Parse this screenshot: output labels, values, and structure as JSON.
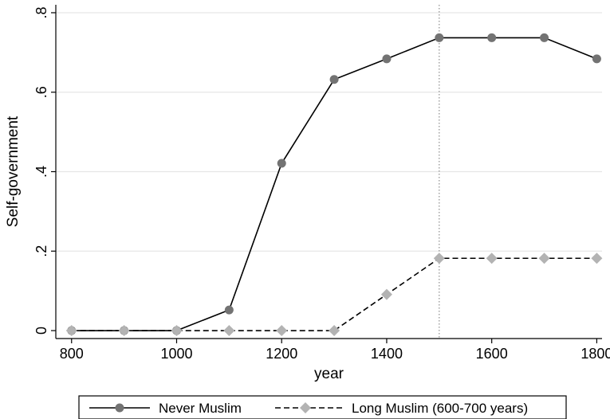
{
  "chart_data": {
    "type": "line",
    "xlabel": "year",
    "ylabel": "Self-government",
    "xlim": [
      770,
      1810
    ],
    "ylim": [
      -0.02,
      0.82
    ],
    "xticks": [
      800,
      1000,
      1200,
      1400,
      1600,
      1800
    ],
    "xtick_labels": [
      "800",
      "1000",
      "1200",
      "1400",
      "1600",
      "1800"
    ],
    "yticks": [
      0,
      0.2,
      0.4,
      0.6,
      0.8
    ],
    "ytick_labels": [
      "0",
      ".2",
      ".4",
      ".6",
      ".8"
    ],
    "grid": "horizontal",
    "reference_line_x": 1500,
    "legend_position": "bottom",
    "x": [
      800,
      900,
      1000,
      1100,
      1200,
      1300,
      1400,
      1500,
      1600,
      1700,
      1800
    ],
    "series": [
      {
        "name": "Never Muslim",
        "values": [
          0,
          0,
          0,
          0.052,
          0.421,
          0.632,
          0.684,
          0.737,
          0.737,
          0.737,
          0.684
        ],
        "color": "#000000",
        "marker_color": "#737373",
        "marker": "circle",
        "line_style": "solid"
      },
      {
        "name": "Long Muslim (600-700 years)",
        "values": [
          0,
          0,
          0,
          0,
          0,
          0,
          0.091,
          0.182,
          0.182,
          0.182,
          0.182
        ],
        "color": "#000000",
        "marker_color": "#b3b3b3",
        "marker": "diamond",
        "line_style": "dashed"
      }
    ]
  }
}
